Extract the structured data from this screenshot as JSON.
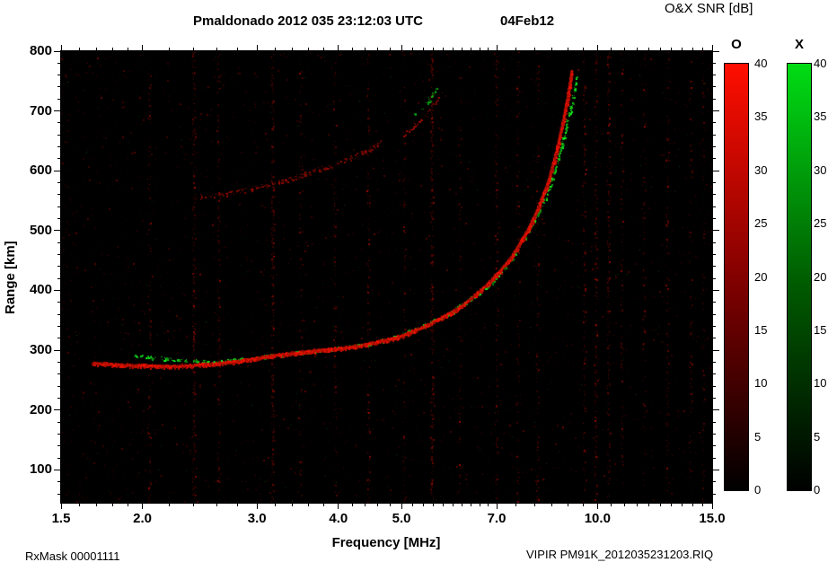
{
  "header": {
    "title": "Pmaldonado 2012 035 23:12:03 UTC",
    "date": "04Feb12",
    "colorbar_title": "O&X SNR [dB]"
  },
  "footer": {
    "left": "RxMask 00001111",
    "right": "VIPIR  PM91K_2012035231203.RIQ"
  },
  "chart_data": {
    "type": "heatmap",
    "title": "Pmaldonado 2012 035 23:12:03 UTC",
    "subtitle": "04Feb12",
    "xlabel": "Frequency [MHz]",
    "ylabel": "Range [km]",
    "x_scale": "log",
    "xlim": [
      1.5,
      15
    ],
    "ylim": [
      45,
      800
    ],
    "x_ticks": [
      1.5,
      2,
      3,
      4,
      5,
      7,
      10,
      15
    ],
    "x_tick_labels": [
      "1.5",
      "2.0",
      "3.0",
      "4.0",
      "5.0",
      "7.0",
      "10.0",
      "15.0"
    ],
    "x_minor_ticks": [
      1.6,
      1.7,
      1.8,
      1.9,
      2.2,
      2.4,
      2.6,
      2.8,
      3.2,
      3.4,
      3.6,
      3.8,
      4.2,
      4.4,
      4.6,
      4.8,
      5.2,
      5.4,
      5.6,
      5.8,
      6,
      6.2,
      6.4,
      6.6,
      6.8,
      7.5,
      8,
      8.5,
      9,
      9.5,
      10.5,
      11,
      11.5,
      12,
      12.5,
      13,
      13.5,
      14,
      14.5
    ],
    "y_ticks": [
      100,
      200,
      300,
      400,
      500,
      600,
      700,
      800
    ],
    "y_minor_step": 20,
    "background": "#000000",
    "grid": false,
    "colorbar": {
      "title": "O&X SNR [dB]",
      "o_label": "O",
      "x_label": "X",
      "ticks": [
        0,
        5,
        10,
        15,
        20,
        25,
        30,
        35,
        40
      ],
      "max_value": 40,
      "o_color_max": "#ff0e00",
      "o_color_mid": "#7e0000",
      "x_color_max": "#00dc14",
      "x_color_mid": "#005a00",
      "min_color": "#000000"
    },
    "noise": {
      "red_count": 2600,
      "green_count": 260
    },
    "rfi_lines": [
      {
        "f": 2.05,
        "i": 0.22
      },
      {
        "f": 2.4,
        "i": 0.5
      },
      {
        "f": 2.62,
        "i": 0.28
      },
      {
        "f": 3.17,
        "i": 0.55
      },
      {
        "f": 3.5,
        "i": 0.18
      },
      {
        "f": 3.95,
        "i": 0.22
      },
      {
        "f": 4.45,
        "i": 0.28
      },
      {
        "f": 5.05,
        "i": 0.18
      },
      {
        "f": 5.57,
        "i": 0.6
      },
      {
        "f": 6.15,
        "i": 0.18
      },
      {
        "f": 7.0,
        "i": 0.28
      },
      {
        "f": 7.55,
        "i": 0.18
      },
      {
        "f": 8.1,
        "i": 0.22
      },
      {
        "f": 9.55,
        "i": 0.32
      },
      {
        "f": 9.95,
        "i": 0.42
      },
      {
        "f": 10.4,
        "i": 0.38
      },
      {
        "f": 10.9,
        "i": 0.22
      },
      {
        "f": 11.8,
        "i": 0.18
      },
      {
        "f": 12.8,
        "i": 0.26
      },
      {
        "f": 13.9,
        "i": 0.2
      },
      {
        "f": 14.55,
        "i": 0.16
      }
    ],
    "traces": [
      {
        "name": "F-2hop-low-O",
        "mode": "O",
        "points": [
          [
            2.45,
            556
          ],
          [
            2.7,
            562
          ],
          [
            3,
            572
          ],
          [
            3.3,
            583
          ],
          [
            3.6,
            596
          ],
          [
            3.9,
            608
          ],
          [
            4.2,
            622
          ],
          [
            4.5,
            638
          ],
          [
            4.72,
            652
          ]
        ],
        "thickness": 2.5,
        "density": 2,
        "gap": 0.45,
        "min_b": 55,
        "max_b": 165,
        "core": false
      },
      {
        "name": "F-2hop-high-O",
        "mode": "O",
        "points": [
          [
            5.05,
            660
          ],
          [
            5.25,
            676
          ],
          [
            5.45,
            694
          ],
          [
            5.6,
            710
          ],
          [
            5.72,
            724
          ]
        ],
        "thickness": 2.5,
        "density": 2,
        "gap": 0.5,
        "min_b": 60,
        "max_b": 175,
        "core": false
      },
      {
        "name": "F-2hop-high-X",
        "mode": "X",
        "points": [
          [
            5.2,
            690
          ],
          [
            5.4,
            706
          ],
          [
            5.55,
            722
          ],
          [
            5.68,
            738
          ]
        ],
        "thickness": 2,
        "density": 1.6,
        "gap": 0.6,
        "min_b": 90,
        "max_b": 200,
        "core": false
      },
      {
        "name": "F-1hop-X",
        "mode": "X",
        "points": [
          [
            1.95,
            290
          ],
          [
            2.2,
            285
          ],
          [
            2.4,
            282
          ],
          [
            2.6,
            280
          ],
          [
            2.9,
            285
          ],
          [
            3.2,
            291
          ],
          [
            3.5,
            296
          ],
          [
            3.8,
            300
          ],
          [
            4.1,
            304
          ],
          [
            4.45,
            310
          ],
          [
            4.8,
            318
          ],
          [
            5.2,
            333
          ],
          [
            5.6,
            348
          ],
          [
            6,
            364
          ],
          [
            6.4,
            386
          ],
          [
            6.9,
            412
          ],
          [
            7.3,
            445
          ],
          [
            7.7,
            482
          ],
          [
            8.1,
            525
          ],
          [
            8.45,
            572
          ],
          [
            8.75,
            625
          ],
          [
            8.95,
            672
          ],
          [
            9.15,
            715
          ],
          [
            9.3,
            758
          ]
        ],
        "thickness": 2,
        "density": 2.2,
        "gap": 0.58,
        "min_b": 110,
        "max_b": 255,
        "core": false
      },
      {
        "name": "F-1hop-O",
        "mode": "O",
        "points": [
          [
            1.68,
            278
          ],
          [
            1.85,
            275
          ],
          [
            2.05,
            273
          ],
          [
            2.3,
            273
          ],
          [
            2.55,
            276
          ],
          [
            2.8,
            281
          ],
          [
            3,
            286
          ],
          [
            3.2,
            291
          ],
          [
            3.45,
            295
          ],
          [
            3.7,
            299
          ],
          [
            4,
            302
          ],
          [
            4.3,
            307
          ],
          [
            4.6,
            313
          ],
          [
            5,
            323
          ],
          [
            5.4,
            338
          ],
          [
            5.8,
            355
          ],
          [
            6.2,
            374
          ],
          [
            6.6,
            398
          ],
          [
            7,
            425
          ],
          [
            7.4,
            457
          ],
          [
            7.8,
            498
          ],
          [
            8.1,
            535
          ],
          [
            8.4,
            580
          ],
          [
            8.65,
            630
          ],
          [
            8.85,
            680
          ],
          [
            9,
            720
          ],
          [
            9.1,
            752
          ],
          [
            9.14,
            768
          ]
        ],
        "thickness": 2.2,
        "density": 4,
        "gap": 0.08,
        "min_b": 150,
        "max_b": 255,
        "core": true
      }
    ]
  }
}
